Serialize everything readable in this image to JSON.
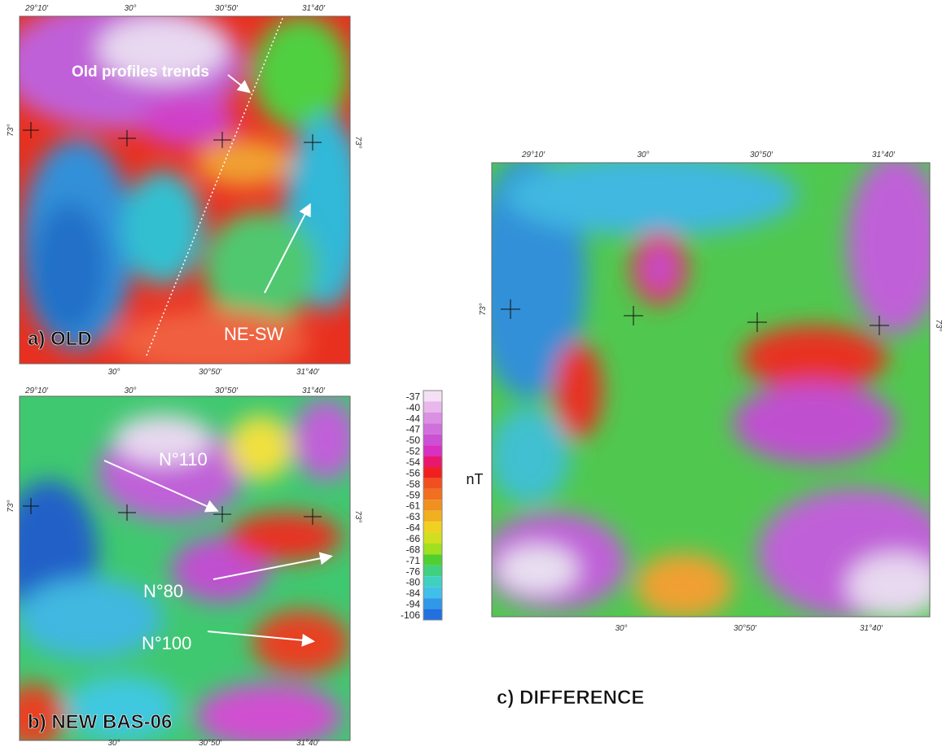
{
  "panels": [
    {
      "label": "a) OLD",
      "top_ticks": [
        "29°10′",
        "30°",
        "30°50′",
        "31°40′"
      ],
      "bottom_ticks": [
        "30°",
        "30°50′",
        "31°40′"
      ],
      "left_tick": "73°",
      "right_tick": "73°",
      "annotations": [
        "Old profiles trends",
        "NE-SW"
      ]
    },
    {
      "label": "b) NEW BAS-06",
      "top_ticks": [
        "29°10′",
        "30°",
        "30°50′",
        "31°40′"
      ],
      "bottom_ticks": [
        "30°",
        "30°50′",
        "31°40′"
      ],
      "left_tick": "73°",
      "right_tick": "73°",
      "annotations": [
        "N°110",
        "N°80",
        "N°100"
      ]
    },
    {
      "label": "c) DIFFERENCE",
      "top_ticks": [
        "29°10′",
        "30°",
        "30°50′",
        "31°40′"
      ],
      "bottom_ticks": [
        "30°",
        "30°50′",
        "31°40′"
      ],
      "left_tick": "73°",
      "right_tick": "73°",
      "annotations": []
    }
  ],
  "colorbar": {
    "unit": "nT",
    "values": [
      -37,
      -40,
      -44,
      -47,
      -50,
      -52,
      -54,
      -56,
      -58,
      -59,
      -61,
      -63,
      -64,
      -66,
      -68,
      -71,
      -76,
      -80,
      -84,
      -94,
      -106
    ]
  }
}
